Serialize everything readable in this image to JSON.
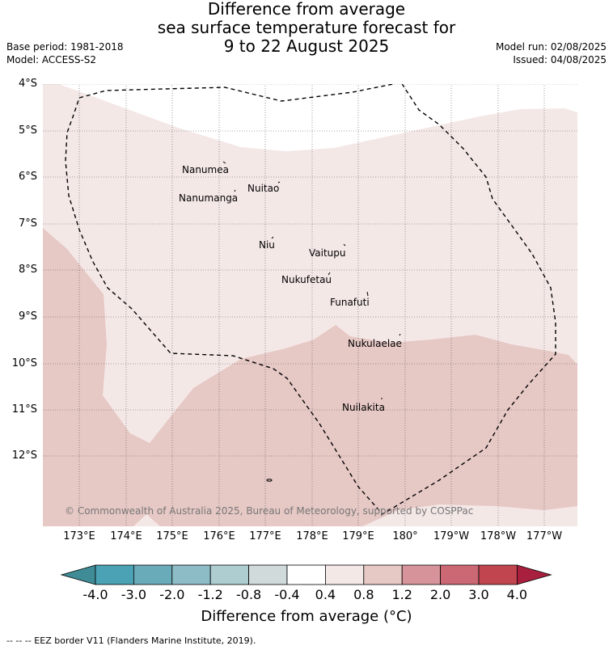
{
  "title": {
    "line1": "Difference from average",
    "line2": "sea surface temperature forecast for",
    "line3": "9 to 22 August 2025"
  },
  "meta": {
    "base_period": "Base period: 1981-2018",
    "model": "Model: ACCESS-S2",
    "model_run": "Model run: 02/08/2025",
    "issued": "Issued: 04/08/2025"
  },
  "map": {
    "lat_labels": [
      "4°S",
      "5°S",
      "6°S",
      "7°S",
      "8°S",
      "9°S",
      "10°S",
      "11°S",
      "12°S"
    ],
    "lon_labels": [
      "173°E",
      "174°E",
      "175°E",
      "176°E",
      "177°E",
      "178°E",
      "179°E",
      "180°",
      "179°W",
      "178°W",
      "177°W"
    ],
    "islands": [
      "Nanumea",
      "Nuitao",
      "Nanumanga",
      "Niu",
      "Vaitupu",
      "Nukufetau",
      "Funafuti",
      "Nukulaelae",
      "Nuilakita"
    ],
    "copyright": "© Commonwealth of Australia 2025, Bureau of Meteorology, supported by COSPPac",
    "colors": {
      "band_0_4_to_0_8": "#f4e8e7",
      "band_0_8_to_1_2": "#e6c8c5",
      "eez_line": "#000000"
    }
  },
  "colorbar": {
    "ticks": [
      "-4.0",
      "-3.0",
      "-2.0",
      "-1.2",
      "-0.8",
      "-0.4",
      "0.4",
      "0.8",
      "1.2",
      "2.0",
      "3.0",
      "4.0"
    ],
    "colors": [
      "#3f8c97",
      "#4aa2b4",
      "#6aabb9",
      "#8dbcc6",
      "#adcdd1",
      "#d1dadb",
      "#ffffff",
      "#f4e8e7",
      "#e6c8c5",
      "#d7939a",
      "#cc6874",
      "#c0454f",
      "#a8203d"
    ],
    "label": "Difference from average (°C)"
  },
  "footer": "--  --  -- EEZ border V11 (Flanders Marine Institute, 2019)."
}
